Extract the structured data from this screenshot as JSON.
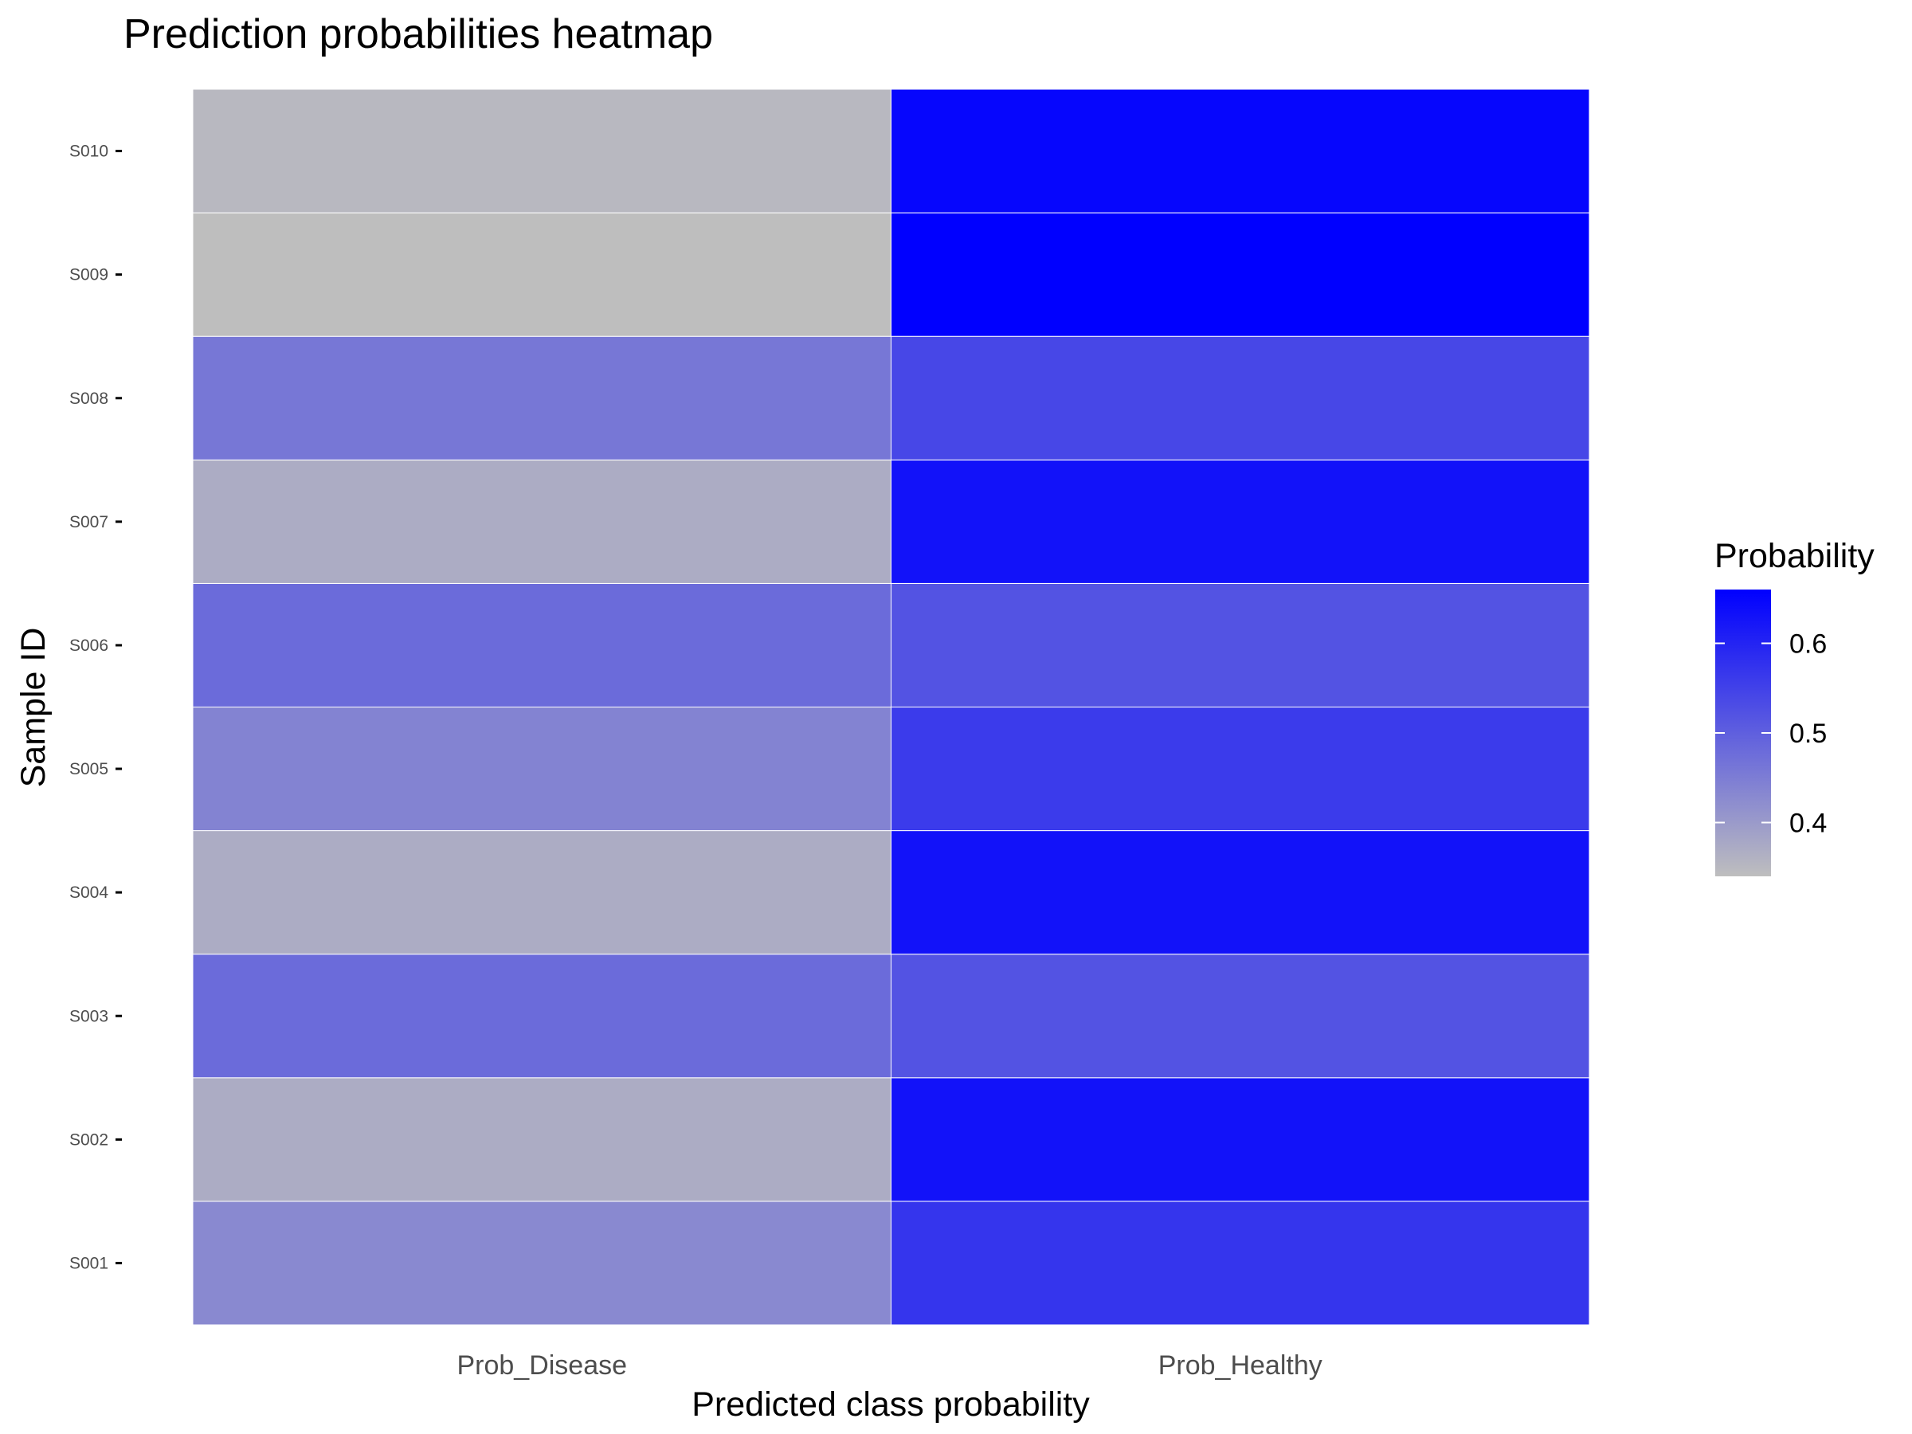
{
  "chart_data": {
    "type": "heatmap",
    "title": "Prediction probabilities heatmap",
    "xlabel": "Predicted class probability",
    "ylabel": "Sample ID",
    "x_categories": [
      "Prob_Disease",
      "Prob_Healthy"
    ],
    "y_categories": [
      "S001",
      "S002",
      "S003",
      "S004",
      "S005",
      "S006",
      "S007",
      "S008",
      "S009",
      "S010"
    ],
    "values": [
      [
        0.43,
        0.57
      ],
      [
        0.37,
        0.63
      ],
      [
        0.48,
        0.52
      ],
      [
        0.37,
        0.63
      ],
      [
        0.44,
        0.56
      ],
      [
        0.48,
        0.52
      ],
      [
        0.37,
        0.63
      ],
      [
        0.46,
        0.54
      ],
      [
        0.34,
        0.66
      ],
      [
        0.35,
        0.65
      ]
    ],
    "colorscale": {
      "low": "#bebebe",
      "high": "#0000ff",
      "min": 0.34,
      "max": 0.66
    },
    "legend": {
      "title": "Probability",
      "ticks": [
        0.4,
        0.5,
        0.6
      ],
      "tick_labels": [
        "0.4",
        "0.5",
        "0.6"
      ],
      "position": "right"
    },
    "grid": false
  }
}
